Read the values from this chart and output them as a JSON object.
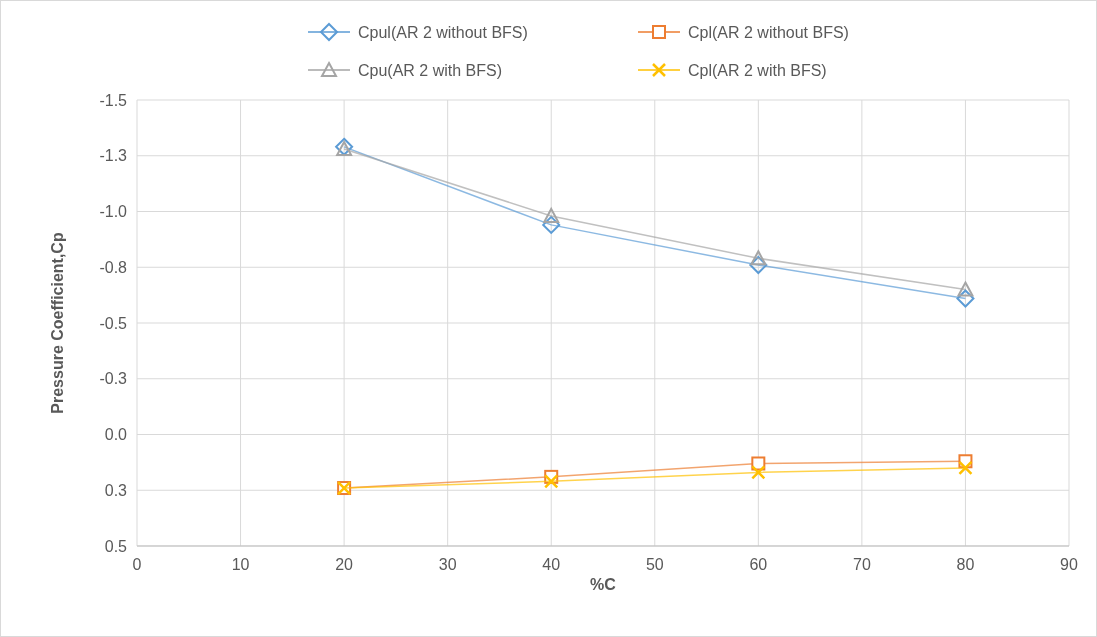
{
  "chart_data": {
    "type": "line",
    "xlabel": "%C",
    "ylabel": "Pressure Coefficient,Cp",
    "x": [
      20,
      40,
      60,
      80
    ],
    "xlim": [
      0,
      90
    ],
    "xticks": [
      0,
      10,
      20,
      30,
      40,
      50,
      60,
      70,
      80,
      90
    ],
    "ylim": [
      0.5,
      -1.5
    ],
    "yticks": [
      {
        "value": -1.5,
        "label": "-1.5"
      },
      {
        "value": -1.25,
        "label": "-1.3"
      },
      {
        "value": -1.0,
        "label": "-1.0"
      },
      {
        "value": -0.75,
        "label": "-0.8"
      },
      {
        "value": -0.5,
        "label": "-0.5"
      },
      {
        "value": -0.25,
        "label": "-0.3"
      },
      {
        "value": 0,
        "label": "0.0"
      },
      {
        "value": 0.25,
        "label": "0.3"
      },
      {
        "value": 0.5,
        "label": "0.5"
      }
    ],
    "grid": true,
    "legend": "top",
    "line_style": "solid",
    "series": [
      {
        "name": "Cpul(AR 2 without BFS)",
        "color": "#5b9bd5",
        "marker": "diamond",
        "values": [
          -1.29,
          -0.94,
          -0.76,
          -0.61
        ]
      },
      {
        "name": "Cpl(AR 2 without BFS)",
        "color": "#ed7d31",
        "marker": "square",
        "values": [
          0.24,
          0.19,
          0.13,
          0.12
        ]
      },
      {
        "name": "Cpu(AR 2 with BFS)",
        "color": "#a5a5a5",
        "marker": "triangle",
        "values": [
          -1.28,
          -0.98,
          -0.79,
          -0.65
        ]
      },
      {
        "name": "Cpl(AR 2 with BFS)",
        "color": "#ffc000",
        "marker": "cross",
        "values": [
          0.24,
          0.21,
          0.17,
          0.15
        ]
      }
    ]
  }
}
